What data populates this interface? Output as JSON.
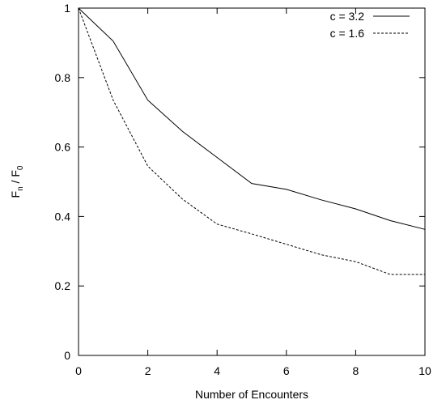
{
  "chart_data": {
    "type": "line",
    "xlabel": "Number of Encounters",
    "ylabel_main": "F",
    "ylabel_main_sub": "n",
    "ylabel_sep": " / ",
    "ylabel_den": "F",
    "ylabel_den_sub": "0",
    "xlim": [
      0,
      10
    ],
    "ylim": [
      0,
      1
    ],
    "xticks": [
      0,
      2,
      4,
      6,
      8,
      10
    ],
    "yticks": [
      0,
      0.2,
      0.4,
      0.6,
      0.8,
      1
    ],
    "xtick_labels": [
      "0",
      "2",
      "4",
      "6",
      "8",
      "10"
    ],
    "ytick_labels": [
      "0",
      "0.2",
      "0.4",
      "0.6",
      "0.8",
      "1"
    ],
    "grid": false,
    "legend_position": "top-right",
    "series": [
      {
        "name": "c = 3.2",
        "style": "solid",
        "x": [
          0,
          1,
          2,
          3,
          4,
          5,
          6,
          7,
          8,
          9,
          10
        ],
        "y": [
          1.0,
          0.905,
          0.735,
          0.645,
          0.57,
          0.495,
          0.478,
          0.448,
          0.422,
          0.388,
          0.363
        ]
      },
      {
        "name": "c = 1.6",
        "style": "dashed",
        "x": [
          0,
          1,
          2,
          3,
          4,
          5,
          6,
          7,
          8,
          9,
          10
        ],
        "y": [
          1.0,
          0.735,
          0.545,
          0.45,
          0.378,
          0.35,
          0.32,
          0.29,
          0.27,
          0.233,
          0.233
        ]
      }
    ]
  }
}
